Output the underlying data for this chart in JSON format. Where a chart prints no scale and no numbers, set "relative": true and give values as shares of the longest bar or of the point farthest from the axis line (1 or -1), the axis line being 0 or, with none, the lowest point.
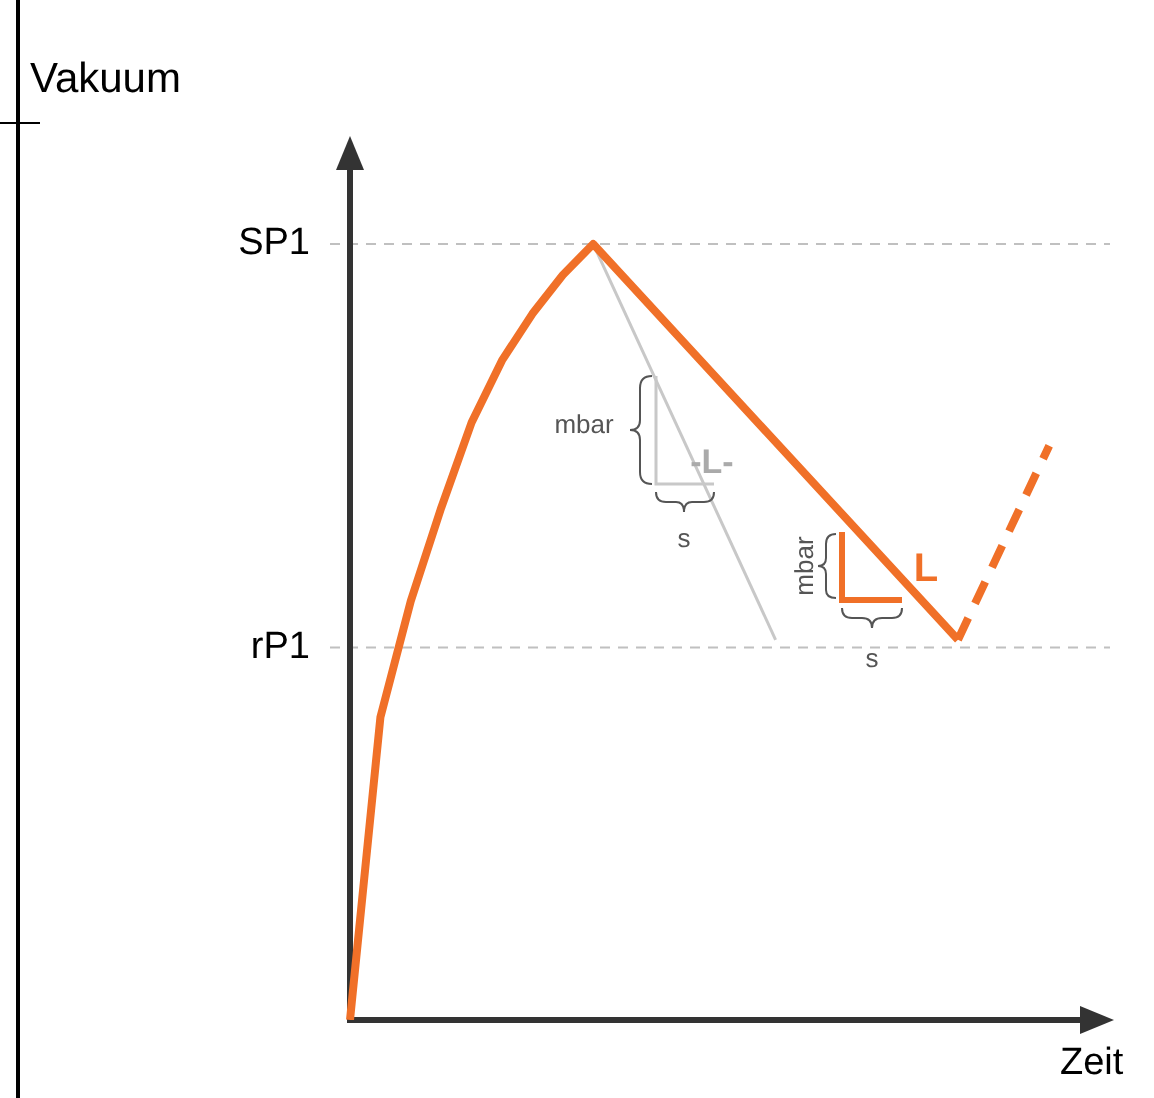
{
  "chart_data": {
    "type": "line",
    "relative": true,
    "xlabel": "Zeit",
    "ylabel": "Vakuum",
    "marker": "none",
    "categories": [
      null,
      null,
      null,
      null,
      null,
      null,
      null,
      null,
      null,
      null,
      null,
      null,
      null,
      null,
      null,
      null,
      null,
      null,
      null,
      null,
      null,
      null,
      null,
      null,
      null,
      null
    ],
    "series": [
      {
        "color": "#f07028",
        "line_style": "solid",
        "values": [
          0,
          0.39,
          0.54,
          0.66,
          0.77,
          0.85,
          0.91,
          0.96,
          1,
          null,
          null,
          null,
          null,
          null,
          null,
          null,
          null,
          null,
          null,
          null,
          0.49,
          null,
          null,
          null,
          null,
          null
        ]
      },
      {
        "color": "#f07028",
        "line_style": "dashed",
        "values": [
          null,
          null,
          null,
          null,
          null,
          null,
          null,
          null,
          null,
          null,
          null,
          null,
          null,
          null,
          null,
          null,
          null,
          null,
          null,
          null,
          0.49,
          null,
          null,
          0.74,
          null,
          null
        ]
      },
      {
        "color": "#c8c8c8",
        "line_style": "solid",
        "values": [
          null,
          null,
          null,
          null,
          null,
          null,
          null,
          null,
          1,
          null,
          null,
          null,
          null,
          null,
          0.49,
          null,
          null,
          null,
          null,
          null,
          null,
          null,
          null,
          null,
          null,
          null
        ]
      }
    ],
    "ref_lines": [
      {
        "axis": "y",
        "value": 1,
        "label": "SP1",
        "color": "#c0c0c0",
        "line_style": "dashed"
      },
      {
        "axis": "y",
        "value": 0.48,
        "label": "rP1",
        "color": "#c0c0c0",
        "line_style": "dashed"
      }
    ],
    "annotations": [
      "mbar",
      "s",
      "-L-",
      "mbar",
      "s",
      "L"
    ]
  }
}
